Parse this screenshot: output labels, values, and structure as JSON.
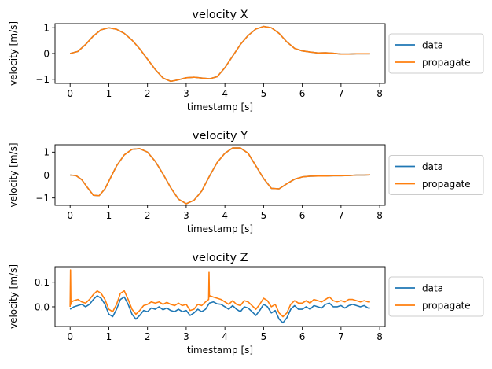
{
  "colors": {
    "data": "#1f77b4",
    "propagate": "#ff7f0e"
  },
  "chart_data": [
    {
      "type": "line",
      "title": "velocity X",
      "xlabel": "timestamp [s]",
      "ylabel": "velocity [m/s]",
      "xlim": [
        -0.39,
        8.14
      ],
      "ylim": [
        -1.16,
        1.16
      ],
      "xticks": [
        0,
        1,
        2,
        3,
        4,
        5,
        6,
        7,
        8
      ],
      "yticks": [
        -1,
        0,
        1
      ],
      "legend": "outside-right",
      "series": [
        {
          "name": "data",
          "color": "#1f77b4",
          "x": [
            0,
            0.2,
            0.4,
            0.6,
            0.8,
            1.0,
            1.2,
            1.4,
            1.6,
            1.8,
            2.0,
            2.2,
            2.4,
            2.6,
            2.8,
            3.0,
            3.2,
            3.4,
            3.6,
            3.8,
            4.0,
            4.2,
            4.4,
            4.6,
            4.8,
            5.0,
            5.2,
            5.4,
            5.6,
            5.8,
            6.0,
            6.2,
            6.4,
            6.6,
            6.8,
            7.0,
            7.2,
            7.4,
            7.6,
            7.75
          ],
          "y": [
            0.0,
            0.08,
            0.35,
            0.68,
            0.92,
            1.0,
            0.94,
            0.78,
            0.52,
            0.18,
            -0.22,
            -0.62,
            -0.95,
            -1.08,
            -1.02,
            -0.94,
            -0.92,
            -0.95,
            -0.98,
            -0.9,
            -0.55,
            -0.1,
            0.35,
            0.7,
            0.95,
            1.05,
            1.0,
            0.78,
            0.45,
            0.2,
            0.1,
            0.06,
            0.02,
            0.03,
            0.01,
            -0.02,
            -0.02,
            -0.01,
            -0.01,
            -0.01
          ]
        },
        {
          "name": "propagate",
          "color": "#ff7f0e",
          "x": [
            0,
            0.2,
            0.4,
            0.6,
            0.8,
            1.0,
            1.2,
            1.4,
            1.6,
            1.8,
            2.0,
            2.2,
            2.4,
            2.6,
            2.8,
            3.0,
            3.2,
            3.4,
            3.6,
            3.8,
            4.0,
            4.2,
            4.4,
            4.6,
            4.8,
            5.0,
            5.2,
            5.4,
            5.6,
            5.8,
            6.0,
            6.2,
            6.4,
            6.6,
            6.8,
            7.0,
            7.2,
            7.4,
            7.6,
            7.75
          ],
          "y": [
            0.0,
            0.08,
            0.35,
            0.68,
            0.92,
            1.0,
            0.94,
            0.78,
            0.52,
            0.18,
            -0.22,
            -0.62,
            -0.95,
            -1.08,
            -1.02,
            -0.94,
            -0.92,
            -0.95,
            -0.98,
            -0.9,
            -0.55,
            -0.1,
            0.35,
            0.7,
            0.95,
            1.05,
            1.0,
            0.78,
            0.45,
            0.2,
            0.1,
            0.06,
            0.02,
            0.03,
            0.01,
            -0.02,
            -0.02,
            -0.01,
            -0.01,
            -0.01
          ]
        }
      ]
    },
    {
      "type": "line",
      "title": "velocity Y",
      "xlabel": "timestamp [s]",
      "ylabel": "velocity [m/s]",
      "xlim": [
        -0.39,
        8.14
      ],
      "ylim": [
        -1.32,
        1.32
      ],
      "xticks": [
        0,
        1,
        2,
        3,
        4,
        5,
        6,
        7,
        8
      ],
      "yticks": [
        -1,
        0,
        1
      ],
      "legend": "outside-right",
      "series": [
        {
          "name": "data",
          "color": "#1f77b4",
          "x": [
            0,
            0.15,
            0.3,
            0.45,
            0.6,
            0.75,
            0.9,
            1.05,
            1.2,
            1.4,
            1.6,
            1.8,
            2.0,
            2.2,
            2.4,
            2.6,
            2.8,
            3.0,
            3.2,
            3.4,
            3.6,
            3.8,
            4.0,
            4.2,
            4.4,
            4.6,
            4.8,
            5.0,
            5.2,
            5.4,
            5.6,
            5.8,
            6.0,
            6.2,
            6.4,
            6.6,
            6.8,
            7.0,
            7.2,
            7.4,
            7.6,
            7.75
          ],
          "y": [
            0.0,
            -0.02,
            -0.2,
            -0.55,
            -0.88,
            -0.9,
            -0.6,
            -0.1,
            0.4,
            0.88,
            1.12,
            1.15,
            1.0,
            0.6,
            0.05,
            -0.55,
            -1.05,
            -1.25,
            -1.1,
            -0.7,
            -0.05,
            0.55,
            0.95,
            1.18,
            1.18,
            0.95,
            0.4,
            -0.15,
            -0.58,
            -0.6,
            -0.38,
            -0.18,
            -0.08,
            -0.05,
            -0.04,
            -0.04,
            -0.03,
            -0.03,
            -0.02,
            0.0,
            0.0,
            0.01
          ]
        },
        {
          "name": "propagate",
          "color": "#ff7f0e",
          "x": [
            0,
            0.15,
            0.3,
            0.45,
            0.6,
            0.75,
            0.9,
            1.05,
            1.2,
            1.4,
            1.6,
            1.8,
            2.0,
            2.2,
            2.4,
            2.6,
            2.8,
            3.0,
            3.2,
            3.4,
            3.6,
            3.8,
            4.0,
            4.2,
            4.4,
            4.6,
            4.8,
            5.0,
            5.2,
            5.4,
            5.6,
            5.8,
            6.0,
            6.2,
            6.4,
            6.6,
            6.8,
            7.0,
            7.2,
            7.4,
            7.6,
            7.75
          ],
          "y": [
            0.0,
            -0.02,
            -0.2,
            -0.55,
            -0.88,
            -0.9,
            -0.6,
            -0.1,
            0.4,
            0.88,
            1.12,
            1.15,
            1.0,
            0.6,
            0.05,
            -0.55,
            -1.05,
            -1.25,
            -1.1,
            -0.7,
            -0.05,
            0.55,
            0.95,
            1.18,
            1.18,
            0.95,
            0.4,
            -0.15,
            -0.58,
            -0.6,
            -0.38,
            -0.18,
            -0.08,
            -0.05,
            -0.04,
            -0.04,
            -0.03,
            -0.03,
            -0.02,
            0.0,
            0.0,
            0.01
          ]
        }
      ]
    },
    {
      "type": "line",
      "title": "velocity Z",
      "xlabel": "timestamp [s]",
      "ylabel": "velocity [m/s]",
      "xlim": [
        -0.39,
        8.14
      ],
      "ylim": [
        -0.08,
        0.163
      ],
      "xticks": [
        0,
        1,
        2,
        3,
        4,
        5,
        6,
        7,
        8
      ],
      "yticks": [
        0.0,
        0.1
      ],
      "ytick_labels": [
        "0.0",
        "0.1"
      ],
      "legend": "outside-right",
      "series": [
        {
          "name": "data",
          "color": "#1f77b4",
          "x": [
            0,
            0.1,
            0.2,
            0.3,
            0.4,
            0.5,
            0.6,
            0.7,
            0.8,
            0.9,
            1.0,
            1.1,
            1.2,
            1.3,
            1.4,
            1.5,
            1.6,
            1.7,
            1.8,
            1.9,
            2.0,
            2.1,
            2.2,
            2.3,
            2.4,
            2.5,
            2.6,
            2.7,
            2.8,
            2.9,
            3.0,
            3.1,
            3.2,
            3.3,
            3.4,
            3.5,
            3.6,
            3.7,
            3.8,
            3.9,
            4.0,
            4.1,
            4.2,
            4.3,
            4.4,
            4.5,
            4.6,
            4.7,
            4.8,
            4.9,
            5.0,
            5.1,
            5.2,
            5.3,
            5.4,
            5.5,
            5.6,
            5.7,
            5.8,
            5.9,
            6.0,
            6.1,
            6.2,
            6.3,
            6.4,
            6.5,
            6.6,
            6.7,
            6.8,
            6.9,
            7.0,
            7.1,
            7.2,
            7.3,
            7.4,
            7.5,
            7.6,
            7.7,
            7.75
          ],
          "y": [
            -0.01,
            0.0,
            0.005,
            0.01,
            0.0,
            0.01,
            0.03,
            0.045,
            0.035,
            0.01,
            -0.03,
            -0.04,
            -0.01,
            0.03,
            0.04,
            0.01,
            -0.03,
            -0.05,
            -0.035,
            -0.015,
            -0.02,
            -0.005,
            -0.01,
            0.0,
            -0.012,
            -0.005,
            -0.015,
            -0.02,
            -0.01,
            -0.02,
            -0.015,
            -0.035,
            -0.025,
            -0.01,
            -0.02,
            -0.01,
            0.015,
            0.02,
            0.012,
            0.01,
            0.0,
            -0.01,
            0.005,
            -0.01,
            -0.02,
            0.0,
            -0.005,
            -0.02,
            -0.035,
            -0.015,
            0.01,
            0.0,
            -0.025,
            -0.015,
            -0.05,
            -0.065,
            -0.045,
            -0.01,
            0.005,
            -0.01,
            -0.01,
            0.0,
            -0.01,
            0.005,
            0.0,
            -0.005,
            0.01,
            0.015,
            0.0,
            0.0,
            0.005,
            -0.005,
            0.005,
            0.01,
            0.005,
            0.0,
            0.005,
            -0.005,
            -0.005
          ]
        },
        {
          "name": "propagate",
          "color": "#ff7f0e",
          "x": [
            0,
            0.01,
            0.02,
            0.03,
            0.1,
            0.2,
            0.3,
            0.4,
            0.5,
            0.6,
            0.7,
            0.8,
            0.9,
            1.0,
            1.1,
            1.2,
            1.3,
            1.4,
            1.5,
            1.6,
            1.7,
            1.8,
            1.9,
            2.0,
            2.1,
            2.2,
            2.3,
            2.4,
            2.5,
            2.6,
            2.7,
            2.8,
            2.9,
            3.0,
            3.1,
            3.2,
            3.3,
            3.4,
            3.5,
            3.58,
            3.59,
            3.6,
            3.61,
            3.7,
            3.8,
            3.9,
            4.0,
            4.1,
            4.2,
            4.3,
            4.4,
            4.5,
            4.6,
            4.7,
            4.8,
            4.9,
            5.0,
            5.1,
            5.2,
            5.3,
            5.4,
            5.5,
            5.6,
            5.7,
            5.8,
            5.9,
            6.0,
            6.1,
            6.2,
            6.3,
            6.4,
            6.5,
            6.6,
            6.7,
            6.8,
            6.9,
            7.0,
            7.1,
            7.2,
            7.3,
            7.4,
            7.5,
            7.6,
            7.7,
            7.75
          ],
          "y": [
            0.0,
            0.15,
            0.01,
            0.02,
            0.025,
            0.03,
            0.02,
            0.015,
            0.03,
            0.05,
            0.065,
            0.055,
            0.03,
            -0.01,
            -0.02,
            0.01,
            0.055,
            0.065,
            0.03,
            -0.01,
            -0.03,
            -0.015,
            0.005,
            0.01,
            0.02,
            0.015,
            0.02,
            0.01,
            0.018,
            0.01,
            0.005,
            0.015,
            0.005,
            0.01,
            -0.015,
            -0.01,
            0.01,
            0.005,
            0.02,
            0.03,
            0.14,
            0.04,
            0.045,
            0.04,
            0.035,
            0.03,
            0.02,
            0.01,
            0.025,
            0.01,
            0.005,
            0.025,
            0.02,
            0.005,
            -0.01,
            0.01,
            0.035,
            0.025,
            0.0,
            0.01,
            -0.025,
            -0.04,
            -0.025,
            0.01,
            0.025,
            0.015,
            0.015,
            0.025,
            0.015,
            0.03,
            0.025,
            0.02,
            0.03,
            0.04,
            0.025,
            0.02,
            0.025,
            0.02,
            0.03,
            0.03,
            0.025,
            0.02,
            0.025,
            0.02,
            0.02
          ]
        }
      ]
    }
  ]
}
